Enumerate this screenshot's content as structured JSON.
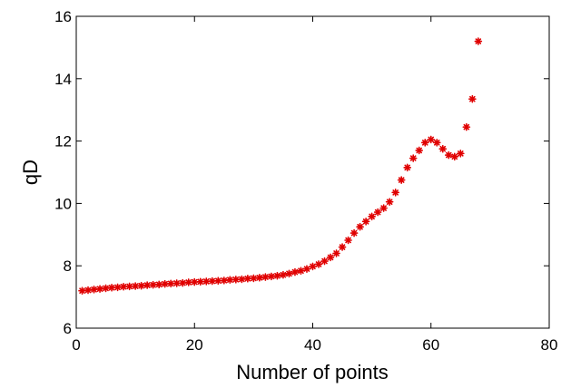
{
  "chart_data": {
    "type": "scatter",
    "xlabel": "Number of points",
    "ylabel": "qD",
    "xlim": [
      0,
      80
    ],
    "ylim": [
      6,
      16
    ],
    "xticks": [
      "0",
      "20",
      "40",
      "60",
      "80"
    ],
    "yticks": [
      "6",
      "8",
      "10",
      "12",
      "14",
      "16"
    ],
    "grid": false,
    "marker": "asterisk",
    "color": "#e00000",
    "series": [
      {
        "x": [
          1,
          2,
          3,
          4,
          5,
          6,
          7,
          8,
          9,
          10,
          11,
          12,
          13,
          14,
          15,
          16,
          17,
          18,
          19,
          20,
          21,
          22,
          23,
          24,
          25,
          26,
          27,
          28,
          29,
          30,
          31,
          32,
          33,
          34,
          35,
          36,
          37,
          38,
          39,
          40,
          41,
          42,
          43,
          44,
          45,
          46,
          47,
          48,
          49,
          50,
          51,
          52,
          53,
          54,
          55,
          56,
          57,
          58,
          59,
          60,
          61,
          62,
          63,
          64,
          65,
          66,
          67,
          68
        ],
        "y": [
          7.2,
          7.22,
          7.24,
          7.26,
          7.28,
          7.3,
          7.31,
          7.33,
          7.34,
          7.35,
          7.36,
          7.38,
          7.39,
          7.4,
          7.42,
          7.43,
          7.44,
          7.45,
          7.47,
          7.48,
          7.49,
          7.5,
          7.51,
          7.52,
          7.53,
          7.55,
          7.56,
          7.57,
          7.59,
          7.6,
          7.62,
          7.64,
          7.66,
          7.68,
          7.71,
          7.75,
          7.8,
          7.84,
          7.9,
          7.98,
          8.05,
          8.15,
          8.27,
          8.4,
          8.6,
          8.82,
          9.05,
          9.25,
          9.42,
          9.58,
          9.72,
          9.85,
          10.05,
          10.35,
          10.75,
          11.15,
          11.45,
          11.7,
          11.95,
          12.05,
          11.95,
          11.75,
          11.55,
          11.5,
          11.6,
          12.45,
          13.35,
          15.2
        ]
      }
    ]
  }
}
